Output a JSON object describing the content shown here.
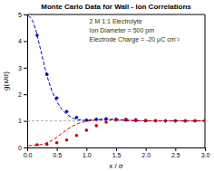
{
  "chart_data": {
    "type": "line",
    "title": "Monte Carlo Data for Wall - Ion Correlations",
    "xlabel": "x / σ",
    "ylabel": "g(x/σ)",
    "annotations": [
      "2 M 1:1 Electrolyte",
      "Ion Diameter = 500 pm",
      "Electrode Charge = -20 μC cm⁻²"
    ],
    "xlim": [
      0.0,
      3.0
    ],
    "ylim": [
      0.0,
      5.0
    ],
    "xticks": [
      {
        "value": 0.0,
        "label": "0.0"
      },
      0.5,
      {
        "value": 1.0,
        "label": "1.0"
      },
      1.5,
      {
        "value": 2.0,
        "label": "2.0"
      },
      2.5,
      {
        "value": 3.0,
        "label": "3.0"
      }
    ],
    "yticks": [
      0,
      1,
      2,
      3,
      4,
      5
    ],
    "hlines": [
      1.0
    ],
    "series": [
      {
        "type": "line",
        "line_style": "dashed",
        "color": "#0000cc",
        "x": [
          0.02,
          0.06,
          0.1,
          0.15,
          0.2,
          0.25,
          0.3,
          0.36,
          0.42,
          0.5,
          0.58,
          0.67,
          0.77,
          0.87,
          0.97,
          1.1,
          1.3,
          1.5,
          1.7,
          2.0,
          2.5,
          3.0
        ],
        "values": [
          4.95,
          4.88,
          4.72,
          4.38,
          3.92,
          3.45,
          2.98,
          2.5,
          2.1,
          1.72,
          1.45,
          1.24,
          1.1,
          1.04,
          1.02,
          1.04,
          1.07,
          1.05,
          1.02,
          1.0,
          1.0,
          1.0
        ]
      },
      {
        "type": "line",
        "line_style": "dashed",
        "color": "#cc0000",
        "x": [
          0.02,
          0.06,
          0.1,
          0.15,
          0.2,
          0.25,
          0.3,
          0.36,
          0.42,
          0.5,
          0.58,
          0.67,
          0.77,
          0.87,
          0.97,
          1.1,
          1.3,
          1.5,
          1.7,
          2.0,
          2.5,
          3.0
        ],
        "values": [
          0.07,
          0.07,
          0.08,
          0.09,
          0.1,
          0.12,
          0.15,
          0.2,
          0.27,
          0.38,
          0.52,
          0.67,
          0.81,
          0.91,
          0.97,
          1.02,
          1.05,
          1.04,
          1.02,
          1.0,
          1.0,
          1.0
        ]
      },
      {
        "type": "scatter",
        "marker": "circle",
        "color": "#0000cc",
        "x": [
          0.167,
          0.333,
          0.5,
          0.667,
          0.833,
          1.0,
          1.167,
          1.333,
          1.5,
          1.667,
          1.833,
          2.0,
          2.167,
          2.333,
          2.5,
          2.667,
          2.833,
          3.0
        ],
        "values": [
          4.22,
          2.75,
          1.86,
          1.35,
          1.13,
          1.03,
          1.06,
          1.08,
          1.06,
          1.03,
          1.01,
          1.0,
          1.0,
          1.0,
          1.0,
          1.0,
          1.0,
          1.0
        ]
      },
      {
        "type": "scatter",
        "marker": "circle",
        "color": "#cc0000",
        "x": [
          0.167,
          0.333,
          0.5,
          0.667,
          0.833,
          1.0,
          1.167,
          1.333,
          1.5,
          1.667,
          1.833,
          2.0,
          2.167,
          2.333,
          2.5,
          2.667,
          2.833,
          3.0
        ],
        "values": [
          0.1,
          0.12,
          0.18,
          0.28,
          0.45,
          0.65,
          0.82,
          0.95,
          1.03,
          1.06,
          1.04,
          1.02,
          1.01,
          1.0,
          1.0,
          1.0,
          1.0,
          1.0
        ]
      }
    ]
  }
}
